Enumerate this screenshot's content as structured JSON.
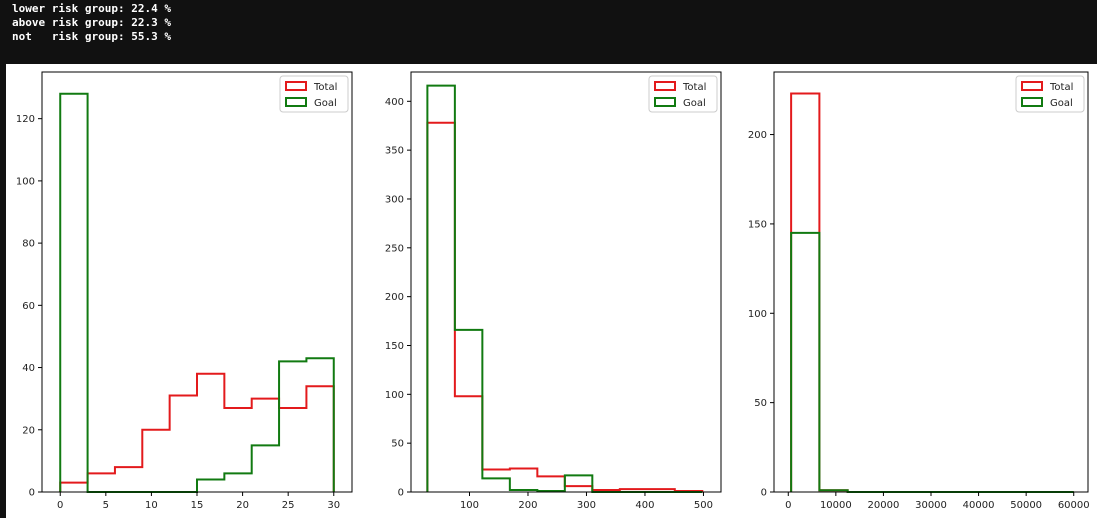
{
  "console": {
    "lines": [
      "lower risk group: 22.4 %",
      "above risk group: 22.3 %",
      "not   risk group: 55.3 %"
    ]
  },
  "colors": {
    "total": "#e31a1c",
    "goal": "#117a11",
    "axis": "#000000"
  },
  "chart_data": [
    {
      "type": "histogram",
      "xlim": [
        -2,
        32
      ],
      "ylim": [
        0,
        135
      ],
      "xticks": [
        0,
        5,
        10,
        15,
        20,
        25,
        30
      ],
      "yticks": [
        0,
        20,
        40,
        60,
        80,
        100,
        120
      ],
      "grid": false,
      "legend": "top-right",
      "bin_edges": [
        0,
        3,
        6,
        9,
        12,
        15,
        18,
        21,
        24,
        27,
        30
      ],
      "series": [
        {
          "name": "Total",
          "color": "#e31a1c",
          "values": [
            3,
            6,
            8,
            20,
            31,
            38,
            27,
            30,
            27,
            34
          ]
        },
        {
          "name": "Goal",
          "color": "#117a11",
          "values": [
            128,
            0,
            0,
            0,
            0,
            4,
            6,
            15,
            42,
            43
          ]
        }
      ]
    },
    {
      "type": "histogram",
      "xlim": [
        0,
        530
      ],
      "ylim": [
        0,
        430
      ],
      "xticks": [
        100,
        200,
        300,
        400,
        500
      ],
      "yticks": [
        0,
        50,
        100,
        150,
        200,
        250,
        300,
        350,
        400
      ],
      "grid": false,
      "legend": "top-right",
      "bin_edges": [
        28,
        75,
        122,
        169,
        216,
        263,
        310,
        357,
        404,
        451,
        498
      ],
      "series": [
        {
          "name": "Total",
          "color": "#e31a1c",
          "values": [
            378,
            98,
            23,
            24,
            16,
            6,
            2,
            3,
            3,
            1
          ]
        },
        {
          "name": "Goal",
          "color": "#117a11",
          "values": [
            416,
            166,
            14,
            2,
            1,
            17,
            0,
            0,
            0,
            0
          ]
        }
      ]
    },
    {
      "type": "histogram",
      "xlim": [
        -3000,
        63000
      ],
      "ylim": [
        0,
        235
      ],
      "xticks": [
        0,
        10000,
        20000,
        30000,
        40000,
        50000,
        60000
      ],
      "yticks": [
        0,
        50,
        100,
        150,
        200
      ],
      "grid": false,
      "legend": "top-right",
      "bin_edges": [
        600,
        6540,
        12480,
        18420,
        24360,
        30300,
        36240,
        42180,
        48120,
        54060,
        60000
      ],
      "series": [
        {
          "name": "Total",
          "color": "#e31a1c",
          "values": [
            223,
            1,
            0,
            0,
            0,
            0,
            0,
            0,
            0,
            0
          ]
        },
        {
          "name": "Goal",
          "color": "#117a11",
          "values": [
            145,
            1,
            0,
            0,
            0,
            0,
            0,
            0,
            0,
            0
          ]
        }
      ]
    }
  ]
}
